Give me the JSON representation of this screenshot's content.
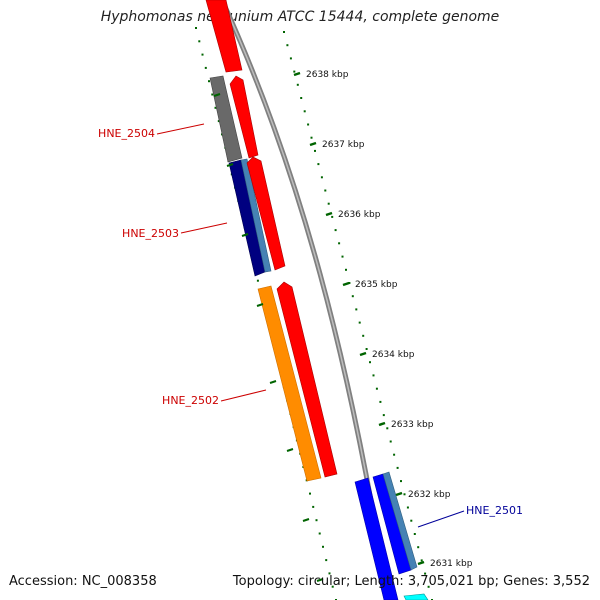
{
  "header": {
    "title": "Hyphomonas neptunium ATCC 15444, complete genome"
  },
  "footer": {
    "accession": "Accession: NC_008358",
    "summary": "Topology: circular; Length: 3,705,021 bp; Genes: 3,552"
  },
  "ruler": {
    "unit_suffix": " kbp",
    "ticks": [
      {
        "kbp": 2638,
        "label": "2638 kbp"
      },
      {
        "kbp": 2637,
        "label": "2637 kbp"
      },
      {
        "kbp": 2636,
        "label": "2636 kbp"
      },
      {
        "kbp": 2635,
        "label": "2635 kbp"
      },
      {
        "kbp": 2634,
        "label": "2634 kbp"
      },
      {
        "kbp": 2633,
        "label": "2633 kbp"
      },
      {
        "kbp": 2632,
        "label": "2632 kbp"
      },
      {
        "kbp": 2631,
        "label": "2631 kbp"
      }
    ]
  },
  "gene_labels": [
    {
      "label": "HNE_2504",
      "color": "#cc0000"
    },
    {
      "label": "HNE_2503",
      "color": "#cc0000"
    },
    {
      "label": "HNE_2502",
      "color": "#cc0000"
    },
    {
      "label": "HNE_2501",
      "color": "#000099"
    }
  ],
  "colors": {
    "cds_forward": "#ff0000",
    "cds_reverse_dark": "#000080",
    "cds_reverse_light": "#4682b4",
    "gene_grey": "#696969",
    "gene_orange": "#ff8c00",
    "gene_blue": "#0000ff",
    "gene_cyan": "#00ffff",
    "backbone": "#808080",
    "ruler_green": "#006400"
  }
}
